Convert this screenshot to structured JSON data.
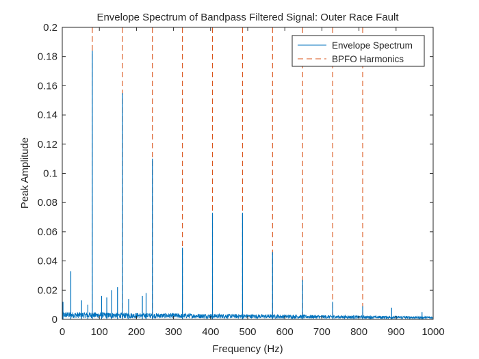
{
  "chart_data": {
    "type": "line",
    "title": "Envelope Spectrum of Bandpass Filtered Signal: Outer Race Fault",
    "xlabel": "Frequency (Hz)",
    "ylabel": "Peak Amplitude",
    "xlim": [
      0,
      1000
    ],
    "ylim": [
      0,
      0.2
    ],
    "xticks": [
      0,
      100,
      200,
      300,
      400,
      500,
      600,
      700,
      800,
      900,
      1000
    ],
    "yticks": [
      0,
      0.02,
      0.04,
      0.06,
      0.08,
      0.1,
      0.12,
      0.14,
      0.16,
      0.18,
      0.2
    ],
    "grid": false,
    "legend_position": "top-right",
    "series": [
      {
        "name": "Envelope Spectrum",
        "style": "solid",
        "color": "#0072BD",
        "peaks": [
          {
            "x": 2,
            "y": 0.012
          },
          {
            "x": 23,
            "y": 0.033
          },
          {
            "x": 52,
            "y": 0.013
          },
          {
            "x": 69,
            "y": 0.01
          },
          {
            "x": 81,
            "y": 0.184
          },
          {
            "x": 106,
            "y": 0.016
          },
          {
            "x": 120,
            "y": 0.015
          },
          {
            "x": 133,
            "y": 0.02
          },
          {
            "x": 149,
            "y": 0.022
          },
          {
            "x": 162,
            "y": 0.155
          },
          {
            "x": 179,
            "y": 0.014
          },
          {
            "x": 216,
            "y": 0.016
          },
          {
            "x": 226,
            "y": 0.018
          },
          {
            "x": 243,
            "y": 0.11
          },
          {
            "x": 324,
            "y": 0.049
          },
          {
            "x": 405,
            "y": 0.073
          },
          {
            "x": 486,
            "y": 0.073
          },
          {
            "x": 567,
            "y": 0.046
          },
          {
            "x": 648,
            "y": 0.027
          },
          {
            "x": 729,
            "y": 0.012
          },
          {
            "x": 810,
            "y": 0.009
          },
          {
            "x": 888,
            "y": 0.008
          },
          {
            "x": 970,
            "y": 0.005
          }
        ],
        "noise_floor": 0.003
      },
      {
        "name": "BPFO Harmonics",
        "style": "dashed",
        "color": "#D95319",
        "x": [
          81,
          162,
          243,
          324,
          405,
          486,
          567,
          648,
          729,
          810
        ]
      }
    ]
  },
  "colors": {
    "spectrum": "#0072BD",
    "harmonics": "#D95319",
    "axes": "#262626"
  }
}
